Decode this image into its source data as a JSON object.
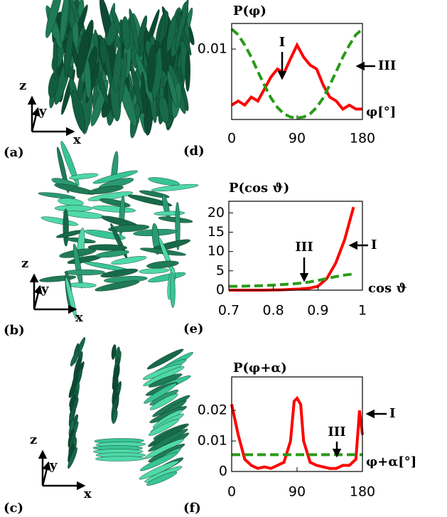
{
  "panels": [
    {
      "label": "(a)",
      "axis_labels": [
        "z",
        "y",
        "x"
      ]
    },
    {
      "label": "(b)",
      "axis_labels": [
        "z",
        "y",
        "x"
      ]
    },
    {
      "label": "(c)",
      "axis_labels": [
        "z",
        "y",
        "x"
      ]
    }
  ],
  "chart_data": [
    {
      "type": "line",
      "panel_label": "(d)",
      "y_label": "P(φ)",
      "x_label": "φ[°]",
      "x": [
        0,
        9,
        18,
        27,
        36,
        45,
        54,
        63,
        72,
        81,
        90,
        99,
        108,
        117,
        126,
        135,
        144,
        153,
        162,
        171,
        180
      ],
      "series": [
        {
          "color": "#ff0000",
          "values": [
            0.003,
            0.0035,
            0.003,
            0.004,
            0.0035,
            0.005,
            0.0065,
            0.0075,
            0.007,
            0.0088,
            0.0105,
            0.009,
            0.008,
            0.0075,
            0.0055,
            0.004,
            0.0035,
            0.0025,
            0.003,
            0.0025,
            0.0025
          ]
        },
        {
          "color": "#2a9a18",
          "dashed": true,
          "values": [
            0.0125,
            0.0118,
            0.0105,
            0.009,
            0.0072,
            0.0055,
            0.0039,
            0.0027,
            0.0019,
            0.0015,
            0.0014,
            0.0015,
            0.0019,
            0.0027,
            0.0039,
            0.0055,
            0.0072,
            0.009,
            0.0105,
            0.0118,
            0.0125
          ]
        }
      ],
      "xlim": [
        0,
        180
      ],
      "xticks": [
        0,
        90,
        180
      ],
      "ylim": [
        0.0012,
        0.0132
      ],
      "yticks": [
        0.01
      ],
      "annotations": [
        "I",
        "III"
      ]
    },
    {
      "type": "line",
      "panel_label": "(e)",
      "y_label": "P(cos ϑ)",
      "x_label": "cos ϑ",
      "x": [
        0.7,
        0.72,
        0.74,
        0.76,
        0.78,
        0.8,
        0.82,
        0.84,
        0.86,
        0.88,
        0.9,
        0.92,
        0.94,
        0.96,
        0.98
      ],
      "series": [
        {
          "color": "#ff0000",
          "values": [
            0,
            0,
            0,
            0,
            0,
            0.05,
            0.1,
            0.2,
            0.3,
            0.5,
            1,
            3,
            7,
            13,
            21.5
          ]
        },
        {
          "color": "#2a9a18",
          "dashed": true,
          "values": [
            1,
            1,
            1.05,
            1.1,
            1.2,
            1.3,
            1.45,
            1.6,
            1.8,
            2.1,
            2.5,
            3,
            3.5,
            3.9,
            4.2
          ]
        }
      ],
      "xlim": [
        0.7,
        1
      ],
      "xticks": [
        0.7,
        0.8,
        0.9,
        1
      ],
      "ylim": [
        0,
        23
      ],
      "yticks": [
        0,
        5,
        10,
        15,
        20
      ],
      "annotations": [
        "III",
        "I"
      ]
    },
    {
      "type": "line",
      "panel_label": "(f)",
      "y_label": "P(φ+α)",
      "x_label": "φ+α[°]",
      "x": [
        0,
        9,
        18,
        27,
        36,
        45,
        54,
        63,
        72,
        81,
        86,
        90,
        95,
        99,
        108,
        117,
        126,
        135,
        144,
        153,
        162,
        171,
        176,
        180
      ],
      "series": [
        {
          "color": "#ff0000",
          "values": [
            0.022,
            0.012,
            0.004,
            0.002,
            0.001,
            0.0015,
            0.001,
            0.002,
            0.003,
            0.01,
            0.023,
            0.024,
            0.022,
            0.01,
            0.003,
            0.002,
            0.0015,
            0.001,
            0.001,
            0.002,
            0.002,
            0.004,
            0.02,
            0.012
          ]
        },
        {
          "color": "#2a9a18",
          "dashed": true,
          "values": [
            0.0055,
            0.0055,
            0.0055,
            0.0055,
            0.0055,
            0.0055,
            0.0055,
            0.0055,
            0.0055,
            0.0055,
            0.0055,
            0.0055,
            0.0055,
            0.0055,
            0.0055,
            0.0055,
            0.0055,
            0.0055,
            0.0055,
            0.0055,
            0.0055,
            0.0055,
            0.0055,
            0.0055
          ]
        }
      ],
      "xlim": [
        0,
        180
      ],
      "xticks": [
        0,
        90,
        180
      ],
      "ylim": [
        0,
        0.031
      ],
      "yticks": [
        0,
        0.01,
        0.02
      ],
      "annotations": [
        "III",
        "I"
      ]
    }
  ]
}
